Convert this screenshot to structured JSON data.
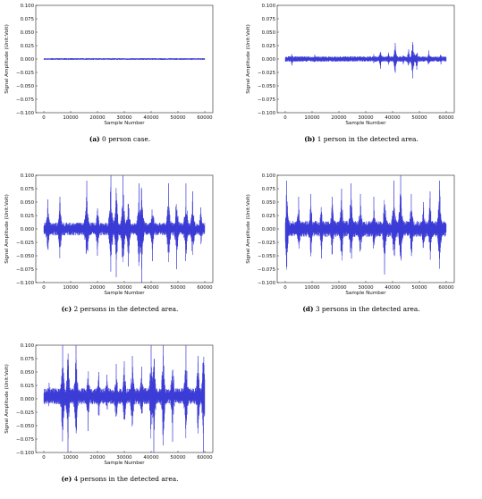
{
  "chart_data": [
    {
      "type": "line",
      "label": "(a)",
      "caption": "0 person case.",
      "xlabel": "Sample Number",
      "ylabel": "Signal Amplitude (Unit:Volt)",
      "xlim": [
        -3000,
        63000
      ],
      "ylim": [
        -0.1,
        0.1
      ],
      "xticks": [
        "0",
        "10000",
        "20000",
        "30000",
        "40000",
        "50000",
        "60000"
      ],
      "yticks": [
        "0.100",
        "0.075",
        "0.050",
        "0.025",
        "0.000",
        "−0.025",
        "−0.050",
        "−0.075",
        "−0.100"
      ],
      "series": [
        {
          "color": "#3b3bd6",
          "x_range": [
            0,
            60000
          ],
          "baseline": 0.0,
          "amplitude": 0.0015,
          "bursts": []
        }
      ]
    },
    {
      "type": "line",
      "label": "(b)",
      "caption": "1 person in the detected area.",
      "xlabel": "Sample Number",
      "ylabel": "Signal Amplitude (Unit:Volt)",
      "xlim": [
        -3000,
        63000
      ],
      "ylim": [
        -0.1,
        0.1
      ],
      "xticks": [
        "0",
        "10000",
        "20000",
        "30000",
        "40000",
        "50000",
        "60000"
      ],
      "yticks": [
        "0.100",
        "0.075",
        "0.050",
        "0.025",
        "0.000",
        "−0.025",
        "−0.050",
        "−0.075",
        "−0.100"
      ],
      "series": [
        {
          "color": "#3b3bd6",
          "x_range": [
            0,
            60000
          ],
          "baseline": 0.0,
          "amplitude": 0.005,
          "bursts": [
            {
              "x": 2500,
              "peak": -0.012
            },
            {
              "x": 11000,
              "peak": 0.008
            },
            {
              "x": 33000,
              "peak": 0.009
            },
            {
              "x": 35500,
              "peak": -0.018
            },
            {
              "x": 38500,
              "peak": 0.012
            },
            {
              "x": 41000,
              "peak": 0.03
            },
            {
              "x": 44000,
              "peak": -0.01
            },
            {
              "x": 46000,
              "peak": 0.018
            },
            {
              "x": 47500,
              "peak": -0.036
            },
            {
              "x": 49000,
              "peak": -0.02
            },
            {
              "x": 53500,
              "peak": 0.016
            },
            {
              "x": 58000,
              "peak": -0.01
            }
          ]
        }
      ]
    },
    {
      "type": "line",
      "label": "(c)",
      "caption": "2 persons in the detected area.",
      "xlabel": "Sample Number",
      "ylabel": "Signal Amplitude (Unit:Volt)",
      "xlim": [
        -3000,
        63000
      ],
      "ylim": [
        -0.1,
        0.1
      ],
      "xticks": [
        "0",
        "10000",
        "20000",
        "30000",
        "40000",
        "50000",
        "60000"
      ],
      "yticks": [
        "0.100",
        "0.075",
        "0.050",
        "0.025",
        "0.000",
        "−0.025",
        "−0.050",
        "−0.075",
        "−0.100"
      ],
      "series": [
        {
          "color": "#3b3bd6",
          "x_range": [
            0,
            60000
          ],
          "baseline": 0.0,
          "amplitude": 0.012,
          "bursts": [
            {
              "x": 1500,
              "peak": 0.055
            },
            {
              "x": 6000,
              "peak": 0.06
            },
            {
              "x": 16000,
              "peak": 0.09
            },
            {
              "x": 20000,
              "peak": -0.05
            },
            {
              "x": 25000,
              "peak": 0.1
            },
            {
              "x": 27000,
              "peak": -0.09
            },
            {
              "x": 29500,
              "peak": 0.1
            },
            {
              "x": 31500,
              "peak": -0.07
            },
            {
              "x": 35500,
              "peak": 0.085
            },
            {
              "x": 36500,
              "peak": -0.1
            },
            {
              "x": 40500,
              "peak": -0.06
            },
            {
              "x": 46500,
              "peak": 0.085
            },
            {
              "x": 49500,
              "peak": -0.075
            },
            {
              "x": 53000,
              "peak": 0.085
            },
            {
              "x": 55500,
              "peak": 0.07
            },
            {
              "x": 58500,
              "peak": 0.04
            }
          ]
        }
      ]
    },
    {
      "type": "line",
      "label": "(d)",
      "caption": "3 persons in the detected area.",
      "xlabel": "Sample Number",
      "ylabel": "Signal Amplitude (Unit:Volt)",
      "xlim": [
        -3000,
        63000
      ],
      "ylim": [
        -0.1,
        0.1
      ],
      "xticks": [
        "0",
        "10000",
        "20000",
        "30000",
        "40000",
        "50000",
        "60000"
      ],
      "yticks": [
        "0.100",
        "0.075",
        "0.050",
        "0.025",
        "0.000",
        "−0.025",
        "−0.050",
        "−0.075",
        "−0.100"
      ],
      "series": [
        {
          "color": "#3b3bd6",
          "x_range": [
            0,
            60000
          ],
          "baseline": 0.0,
          "amplitude": 0.015,
          "bursts": [
            {
              "x": 500,
              "peak": 0.09
            },
            {
              "x": 5000,
              "peak": 0.06
            },
            {
              "x": 9500,
              "peak": 0.065
            },
            {
              "x": 13500,
              "peak": -0.055
            },
            {
              "x": 17500,
              "peak": 0.06
            },
            {
              "x": 21000,
              "peak": 0.075
            },
            {
              "x": 24500,
              "peak": 0.085
            },
            {
              "x": 28000,
              "peak": 0.065
            },
            {
              "x": 33000,
              "peak": 0.06
            },
            {
              "x": 37000,
              "peak": -0.085
            },
            {
              "x": 40500,
              "peak": 0.09
            },
            {
              "x": 43000,
              "peak": 0.1
            },
            {
              "x": 47000,
              "peak": 0.065
            },
            {
              "x": 51500,
              "peak": 0.05
            },
            {
              "x": 54000,
              "peak": 0.07
            },
            {
              "x": 57500,
              "peak": 0.09
            }
          ]
        }
      ]
    },
    {
      "type": "line",
      "label": "(e)",
      "caption": "4 persons in the detected area.",
      "xlabel": "Sample Number",
      "ylabel": "Signal Amplitude (Unit:Volt)",
      "xlim": [
        -3000,
        63000
      ],
      "ylim": [
        -0.1,
        0.1
      ],
      "xticks": [
        "0",
        "10000",
        "20000",
        "30000",
        "40000",
        "50000",
        "60000"
      ],
      "yticks": [
        "0.100",
        "0.075",
        "0.050",
        "0.025",
        "0.000",
        "−0.025",
        "−0.050",
        "−0.075",
        "−0.100"
      ],
      "series": [
        {
          "color": "#3b3bd6",
          "x_range": [
            0,
            60000
          ],
          "baseline": 0.005,
          "amplitude": 0.015,
          "bursts": [
            {
              "x": 2000,
              "peak": 0.03
            },
            {
              "x": 7000,
              "peak": 0.1
            },
            {
              "x": 9000,
              "peak": -0.1
            },
            {
              "x": 12000,
              "peak": 0.1
            },
            {
              "x": 16500,
              "peak": -0.06
            },
            {
              "x": 20500,
              "peak": 0.05
            },
            {
              "x": 23500,
              "peak": 0.045
            },
            {
              "x": 27000,
              "peak": 0.065
            },
            {
              "x": 30000,
              "peak": 0.07
            },
            {
              "x": 33000,
              "peak": 0.08
            },
            {
              "x": 36500,
              "peak": 0.06
            },
            {
              "x": 40000,
              "peak": 0.1
            },
            {
              "x": 41000,
              "peak": -0.1
            },
            {
              "x": 44500,
              "peak": 0.1
            },
            {
              "x": 48000,
              "peak": -0.08
            },
            {
              "x": 53000,
              "peak": 0.1
            },
            {
              "x": 57500,
              "peak": 0.08
            },
            {
              "x": 59500,
              "peak": -0.1
            }
          ]
        }
      ]
    }
  ]
}
